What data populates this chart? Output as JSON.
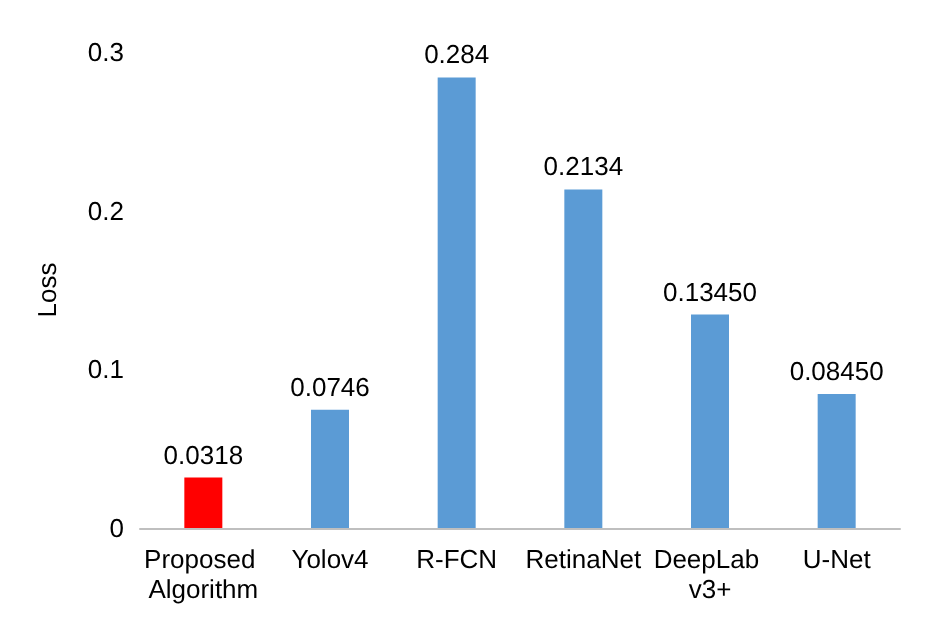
{
  "chart_data": {
    "type": "bar",
    "ylabel": "Loss",
    "categories": [
      "Proposed Algorithm",
      "Yolov4",
      "R-FCN",
      "RetinaNet",
      "DeepLab v3+",
      "U-Net"
    ],
    "values": [
      0.0318,
      0.0746,
      0.284,
      0.2134,
      0.1345,
      0.0845
    ],
    "value_labels": [
      "0.0318",
      "0.0746",
      "0.284",
      "0.2134",
      "0.13450",
      "0.08450"
    ],
    "colors": [
      "#ff0000",
      "#5b9bd5",
      "#5b9bd5",
      "#5b9bd5",
      "#5b9bd5",
      "#5b9bd5"
    ],
    "ylim": [
      0,
      0.3
    ],
    "yticks": [
      0,
      0.1,
      0.2,
      0.3
    ],
    "grid": false
  }
}
